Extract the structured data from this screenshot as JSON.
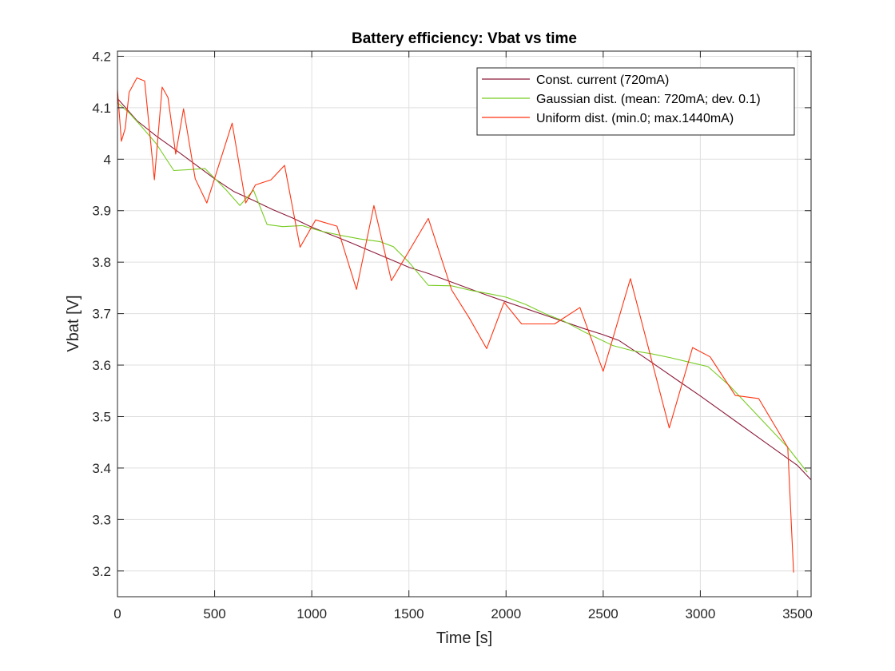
{
  "chart_data": {
    "type": "line",
    "title": "Battery efficiency: Vbat vs time",
    "xlabel": "Time [s]",
    "ylabel": "Vbat [V]",
    "xlim": [
      0,
      3570
    ],
    "ylim": [
      3.15,
      4.21
    ],
    "xticks": [
      0,
      500,
      1000,
      1500,
      2000,
      2500,
      3000,
      3500
    ],
    "xtick_labels": [
      "0",
      "500",
      "1000",
      "1500",
      "2000",
      "2500",
      "3000",
      "3500"
    ],
    "yticks": [
      3.2,
      3.3,
      3.4,
      3.5,
      3.6,
      3.7,
      3.8,
      3.9,
      4.0,
      4.1,
      4.2
    ],
    "ytick_labels": [
      "3.2",
      "3.3",
      "3.4",
      "3.5",
      "3.6",
      "3.7",
      "3.8",
      "3.9",
      "4",
      "4.1",
      "4.2"
    ],
    "grid": true,
    "legend_position": "top-right",
    "series": [
      {
        "name": "Const. current (720mA)",
        "color": "#8b1a3a",
        "x": [
          0,
          100,
          200,
          300,
          400,
          500,
          600,
          700,
          800,
          900,
          1000,
          1100,
          1200,
          1300,
          1400,
          1500,
          1600,
          1700,
          1800,
          1900,
          2000,
          2100,
          2200,
          2300,
          2400,
          2500,
          2580,
          2700,
          2800,
          2900,
          3000,
          3100,
          3200,
          3300,
          3400,
          3500,
          3570
        ],
        "y": [
          4.118,
          4.075,
          4.045,
          4.018,
          3.99,
          3.962,
          3.937,
          3.92,
          3.902,
          3.886,
          3.868,
          3.853,
          3.838,
          3.822,
          3.806,
          3.79,
          3.778,
          3.764,
          3.75,
          3.736,
          3.723,
          3.71,
          3.697,
          3.684,
          3.671,
          3.659,
          3.648,
          3.618,
          3.592,
          3.566,
          3.54,
          3.513,
          3.486,
          3.459,
          3.432,
          3.405,
          3.377
        ]
      },
      {
        "name": "Gaussian dist. (mean: 720mA; dev. 0.1)",
        "color": "#77cc22",
        "x": [
          0,
          30,
          60,
          120,
          200,
          290,
          380,
          450,
          560,
          630,
          700,
          770,
          850,
          950,
          1050,
          1150,
          1250,
          1350,
          1420,
          1500,
          1600,
          1720,
          1820,
          1920,
          2000,
          2100,
          2200,
          2300,
          2400,
          2550,
          2650,
          2750,
          2850,
          2950,
          3040,
          3150,
          3250,
          3350,
          3450,
          3550
        ],
        "y": [
          4.11,
          4.1,
          4.09,
          4.065,
          4.03,
          3.978,
          3.98,
          3.982,
          3.94,
          3.91,
          3.94,
          3.873,
          3.869,
          3.871,
          3.86,
          3.852,
          3.845,
          3.84,
          3.83,
          3.8,
          3.755,
          3.754,
          3.745,
          3.738,
          3.732,
          3.718,
          3.7,
          3.685,
          3.665,
          3.638,
          3.628,
          3.622,
          3.614,
          3.605,
          3.597,
          3.56,
          3.52,
          3.48,
          3.44,
          3.392
        ]
      },
      {
        "name": "Uniform dist. (min.0; max.1440mA)",
        "color": "#ff3311",
        "x": [
          0,
          20,
          40,
          60,
          100,
          140,
          190,
          230,
          260,
          300,
          340,
          400,
          460,
          590,
          660,
          710,
          790,
          860,
          940,
          1020,
          1130,
          1230,
          1320,
          1410,
          1600,
          1720,
          1810,
          1900,
          1990,
          2080,
          2180,
          2250,
          2380,
          2500,
          2640,
          2840,
          2960,
          3050,
          3180,
          3300,
          3450,
          3480
        ],
        "y": [
          4.135,
          4.035,
          4.06,
          4.13,
          4.158,
          4.152,
          3.96,
          4.14,
          4.12,
          4.01,
          4.098,
          3.962,
          3.915,
          4.07,
          3.915,
          3.95,
          3.96,
          3.988,
          3.829,
          3.882,
          3.87,
          3.747,
          3.91,
          3.764,
          3.885,
          3.746,
          3.692,
          3.632,
          3.722,
          3.68,
          3.68,
          3.68,
          3.712,
          3.588,
          3.768,
          3.478,
          3.634,
          3.616,
          3.541,
          3.535,
          3.44,
          3.197
        ]
      }
    ]
  }
}
